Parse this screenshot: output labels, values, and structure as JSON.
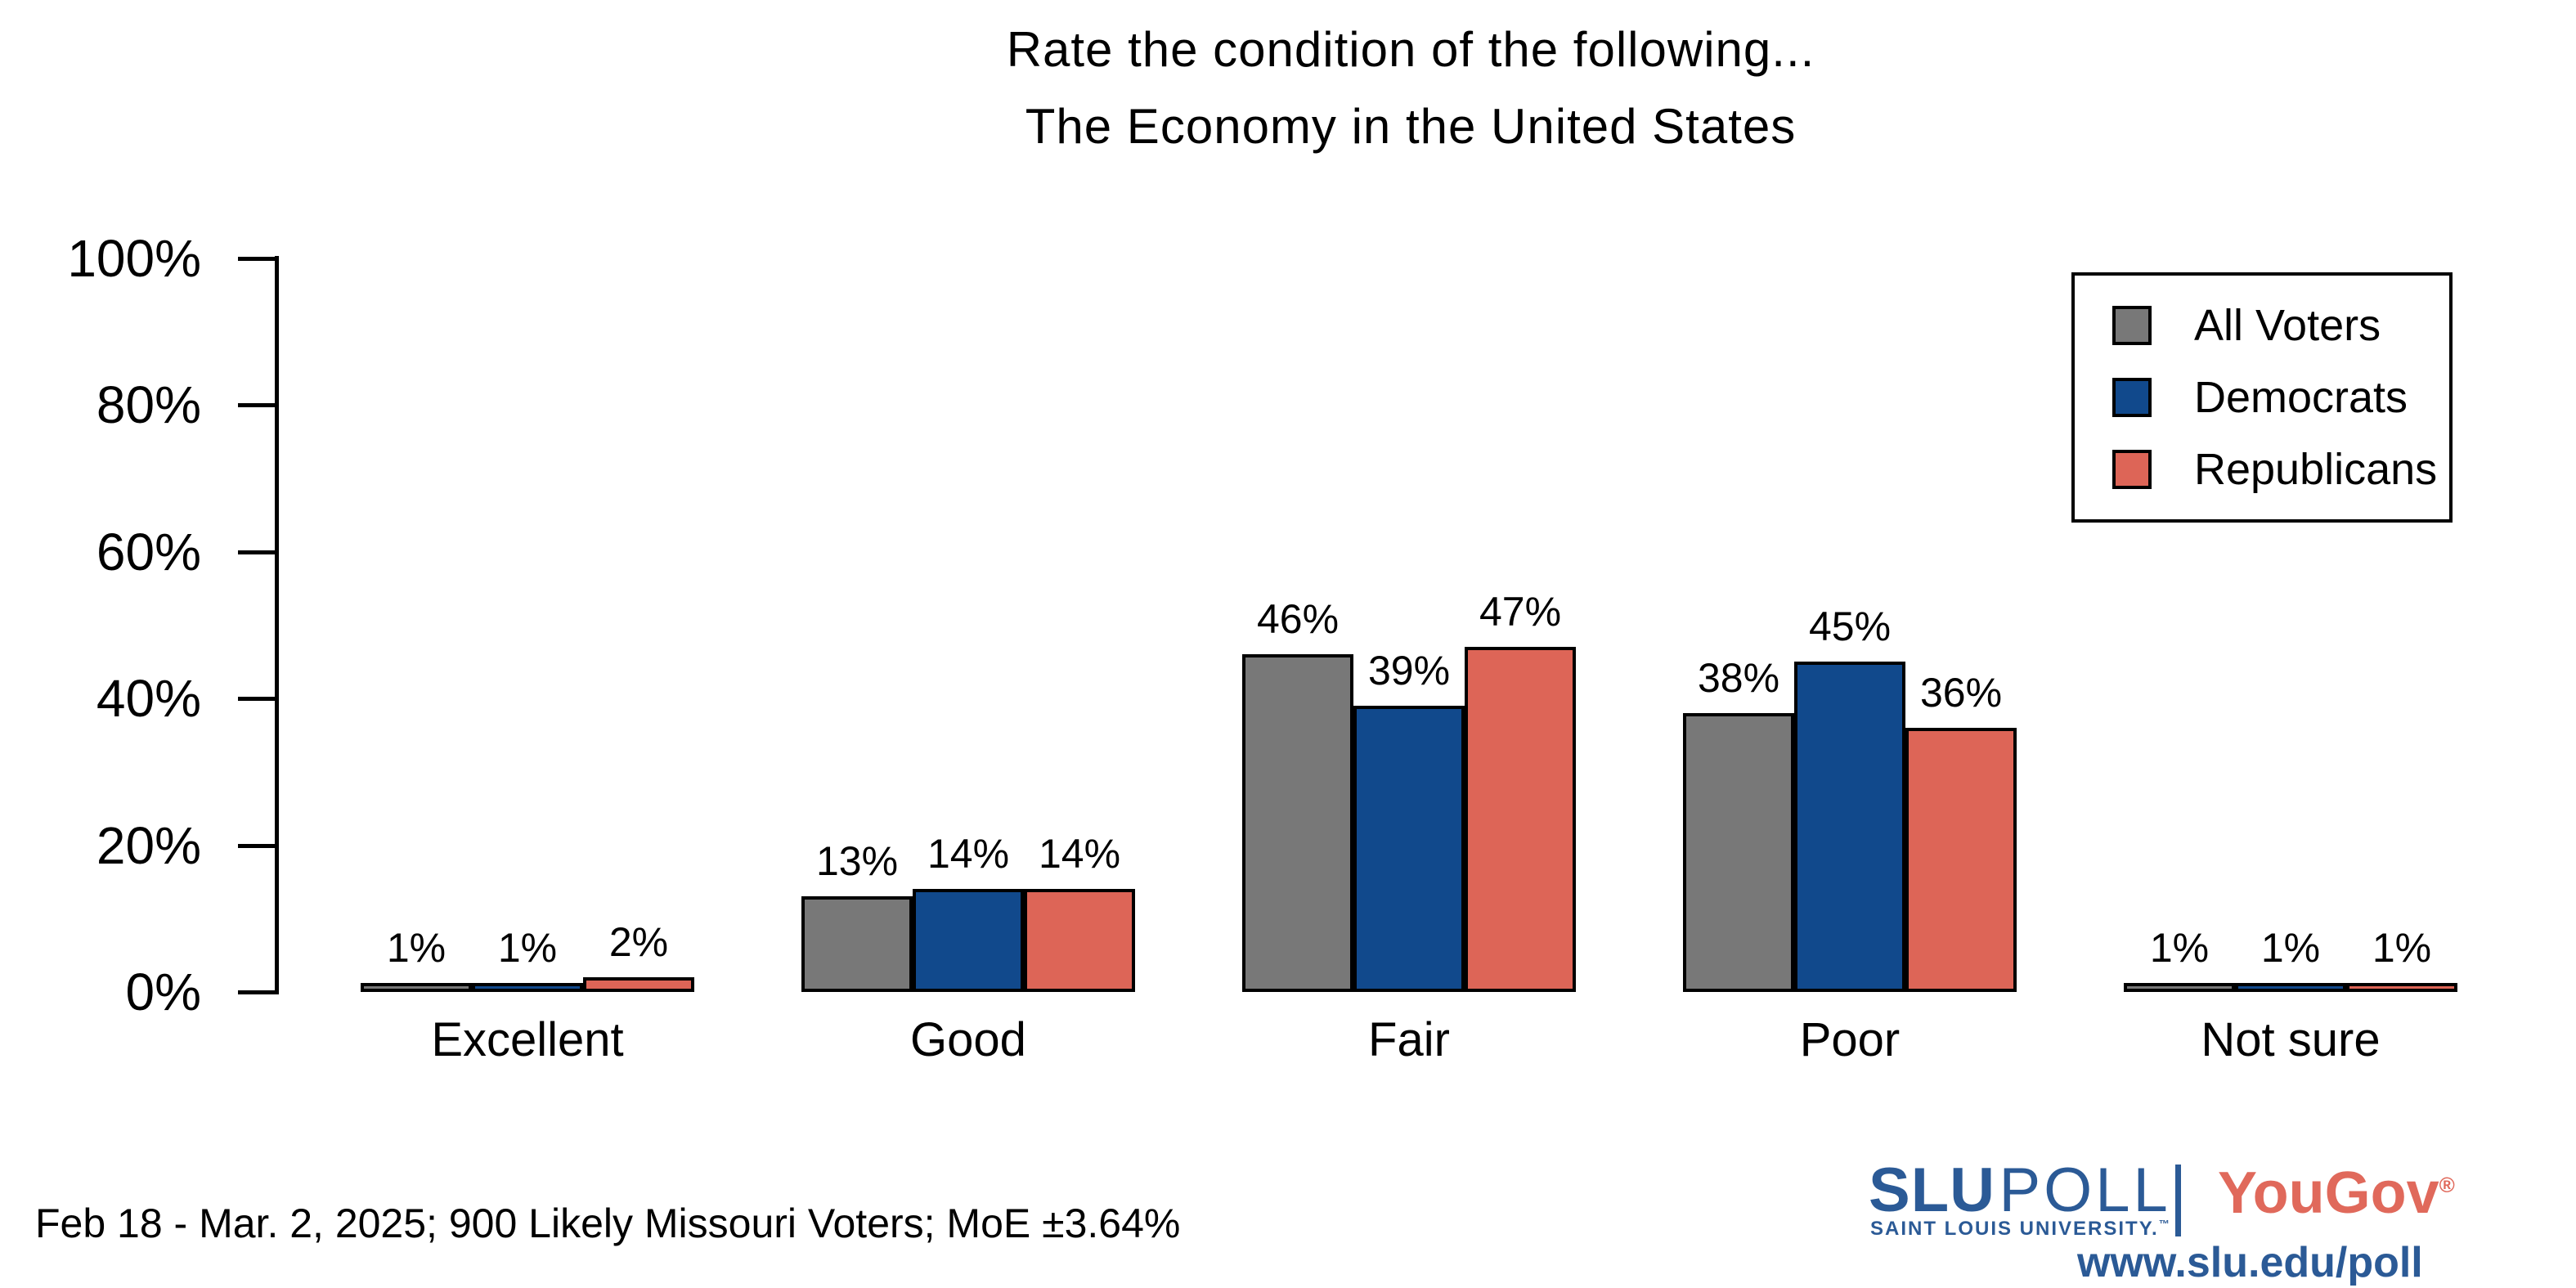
{
  "title": {
    "line1": "Rate the condition of the following...",
    "line2": "The Economy in the United States"
  },
  "chart_data": {
    "type": "bar",
    "title": "Rate the condition of the following... The Economy in the United States",
    "categories": [
      "Excellent",
      "Good",
      "Fair",
      "Poor",
      "Not sure"
    ],
    "series": [
      {
        "name": "All Voters",
        "color": "#787878",
        "values": [
          1,
          13,
          46,
          38,
          1
        ]
      },
      {
        "name": "Democrats",
        "color": "#11498C",
        "values": [
          1,
          14,
          39,
          45,
          1
        ]
      },
      {
        "name": "Republicans",
        "color": "#DD6557",
        "values": [
          2,
          14,
          47,
          36,
          1
        ]
      }
    ],
    "data_label_suffix": "%",
    "ylim": [
      0,
      100
    ],
    "ytick_labels": [
      "0%",
      "20%",
      "40%",
      "60%",
      "80%",
      "100%"
    ],
    "ytick_values": [
      0,
      20,
      40,
      60,
      80,
      100
    ],
    "grid": false,
    "legend_position": "top-right"
  },
  "footer": {
    "note": "Feb 18 - Mar. 2, 2025; 900 Likely Missouri Voters; MoE ±3.64%"
  },
  "branding": {
    "slu_wordmark_bold": "SLU",
    "slu_wordmark_light": "POLL",
    "slu_subtext": "SAINT LOUIS UNIVERSITY.",
    "slu_trademark": "™",
    "yougov": "YouGov",
    "yougov_registered": "®",
    "url": "www.slu.edu/poll",
    "slu_blue": "#2B5A96",
    "yougov_red": "#E0695B"
  }
}
